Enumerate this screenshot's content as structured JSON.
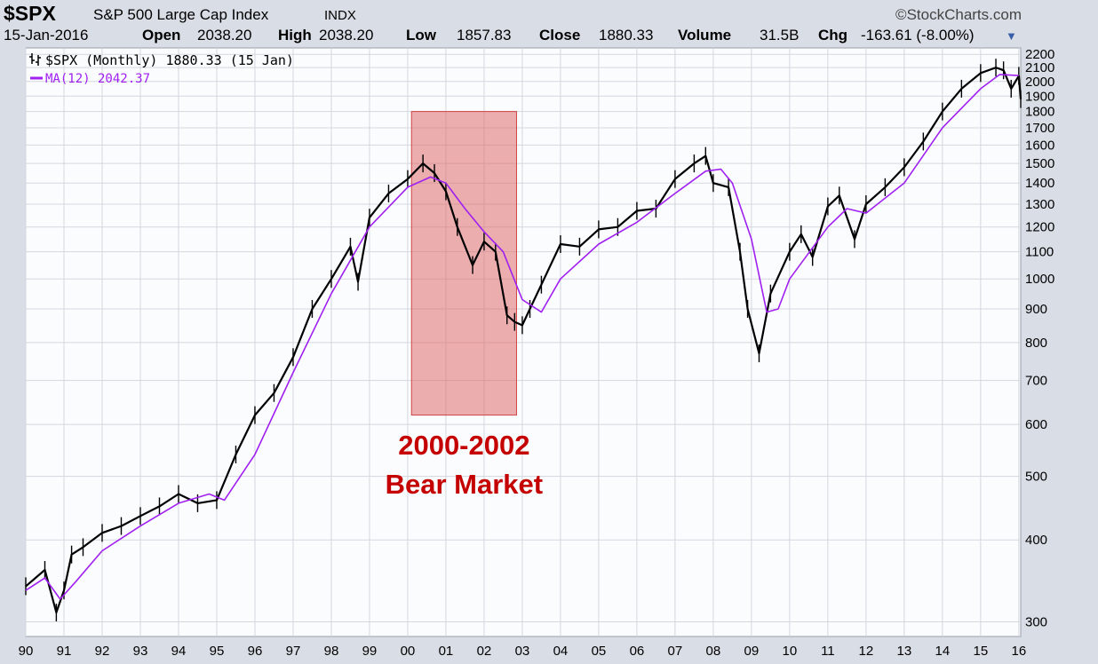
{
  "header": {
    "symbol": "$SPX",
    "name": "S&P 500 Large Cap Index",
    "exchange": "INDX",
    "watermark": "©StockCharts.com",
    "date": "15-Jan-2016",
    "open_label": "Open",
    "open": "2038.20",
    "high_label": "High",
    "high": "2038.20",
    "low_label": "Low",
    "low": "1857.83",
    "close_label": "Close",
    "close": "1880.33",
    "volume_label": "Volume",
    "volume": "31.5B",
    "chg_label": "Chg",
    "chg": "-163.61 (-8.00%)"
  },
  "chart_data": {
    "type": "line",
    "scale": "log",
    "ylim": [
      285,
      2250
    ],
    "y_ticks": [
      300,
      400,
      500,
      600,
      700,
      800,
      900,
      1000,
      1100,
      1200,
      1300,
      1400,
      1500,
      1600,
      1700,
      1800,
      1900,
      2000,
      2100,
      2200
    ],
    "x_range": [
      1990.0,
      2016.05
    ],
    "x_tick_labels": [
      "90",
      "91",
      "92",
      "93",
      "94",
      "95",
      "96",
      "97",
      "98",
      "99",
      "00",
      "01",
      "02",
      "03",
      "04",
      "05",
      "06",
      "07",
      "08",
      "09",
      "10",
      "11",
      "12",
      "13",
      "14",
      "15",
      "16"
    ],
    "grid": true,
    "legend_position": "top-left",
    "legend": {
      "price": "$SPX (Monthly) 1880.33 (15 Jan)",
      "ma": "MA(12) 2042.37"
    },
    "colors": {
      "price": "#000000",
      "ma": "#a020f0",
      "highlight": "#e06b6b",
      "annotation": "#c40000"
    },
    "series": [
      {
        "name": "$SPX (Monthly)",
        "x": [
          1990.0,
          1990.5,
          1990.8,
          1991.0,
          1991.2,
          1991.5,
          1992.0,
          1992.5,
          1993.0,
          1993.5,
          1994.0,
          1994.5,
          1995.0,
          1995.5,
          1996.0,
          1996.5,
          1997.0,
          1997.5,
          1998.0,
          1998.5,
          1998.7,
          1999.0,
          1999.5,
          2000.0,
          2000.4,
          2000.7,
          2001.0,
          2001.3,
          2001.7,
          2002.0,
          2002.3,
          2002.6,
          2002.8,
          2003.0,
          2003.2,
          2003.5,
          2004.0,
          2004.5,
          2005.0,
          2005.5,
          2006.0,
          2006.5,
          2007.0,
          2007.5,
          2007.8,
          2008.0,
          2008.4,
          2008.7,
          2008.9,
          2009.2,
          2009.5,
          2010.0,
          2010.3,
          2010.6,
          2011.0,
          2011.3,
          2011.7,
          2012.0,
          2012.5,
          2013.0,
          2013.5,
          2014.0,
          2014.5,
          2015.0,
          2015.4,
          2015.6,
          2015.8,
          2016.0,
          2016.05
        ],
        "values": [
          340,
          360,
          310,
          335,
          380,
          390,
          410,
          420,
          435,
          450,
          470,
          455,
          460,
          540,
          620,
          670,
          760,
          900,
          1000,
          1120,
          990,
          1240,
          1350,
          1420,
          1500,
          1450,
          1360,
          1200,
          1050,
          1140,
          1100,
          880,
          860,
          850,
          900,
          980,
          1130,
          1120,
          1190,
          1200,
          1270,
          1280,
          1420,
          1500,
          1540,
          1400,
          1380,
          1100,
          900,
          770,
          950,
          1100,
          1170,
          1080,
          1290,
          1340,
          1150,
          1300,
          1380,
          1480,
          1620,
          1800,
          1950,
          2060,
          2100,
          2080,
          1950,
          2040,
          1880
        ]
      },
      {
        "name": "MA(12)",
        "x": [
          1990.0,
          1990.5,
          1990.9,
          1991.3,
          1992.0,
          1993.0,
          1994.0,
          1994.8,
          1995.2,
          1996.0,
          1997.0,
          1998.0,
          1999.0,
          2000.0,
          2000.6,
          2001.0,
          2001.5,
          2002.0,
          2002.5,
          2003.0,
          2003.5,
          2004.0,
          2005.0,
          2006.0,
          2007.0,
          2007.8,
          2008.2,
          2008.5,
          2009.0,
          2009.4,
          2009.7,
          2010.0,
          2011.0,
          2011.5,
          2012.0,
          2013.0,
          2014.0,
          2015.0,
          2015.5,
          2016.0
        ],
        "values": [
          335,
          350,
          325,
          345,
          385,
          420,
          455,
          470,
          460,
          540,
          720,
          950,
          1200,
          1380,
          1430,
          1400,
          1280,
          1180,
          1100,
          930,
          890,
          1000,
          1130,
          1220,
          1350,
          1460,
          1470,
          1400,
          1150,
          890,
          900,
          1000,
          1200,
          1280,
          1260,
          1400,
          1700,
          1950,
          2050,
          2042
        ]
      }
    ],
    "highlight": {
      "x": [
        2000.1,
        2002.85
      ],
      "y": [
        620,
        1800
      ]
    },
    "annotation": {
      "line1": "2000-2002",
      "line2": "Bear Market"
    }
  }
}
